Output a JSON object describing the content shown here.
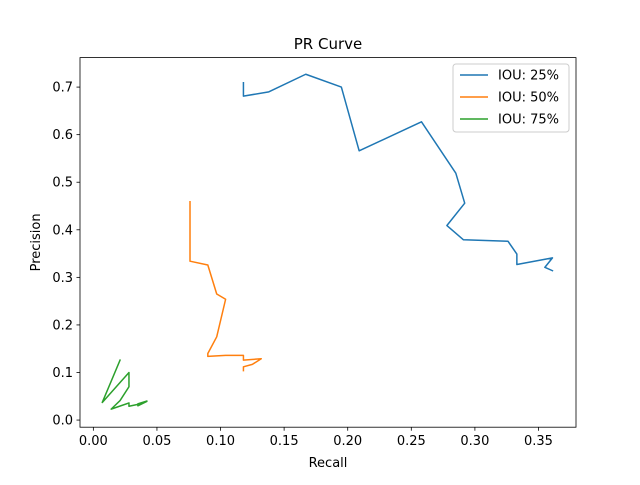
{
  "chart_data": {
    "type": "line",
    "title": "PR Curve",
    "xlabel": "Recall",
    "ylabel": "Precision",
    "xlim": [
      -0.0105,
      0.3795
    ],
    "ylim": [
      -0.015,
      0.762
    ],
    "xticks": [
      0.0,
      0.05,
      0.1,
      0.15,
      0.2,
      0.25,
      0.3,
      0.35
    ],
    "xtick_labels": [
      "0.00",
      "0.05",
      "0.10",
      "0.15",
      "0.20",
      "0.25",
      "0.30",
      "0.35"
    ],
    "yticks": [
      0.0,
      0.1,
      0.2,
      0.3,
      0.4,
      0.5,
      0.6,
      0.7
    ],
    "ytick_labels": [
      "0.0",
      "0.1",
      "0.2",
      "0.3",
      "0.4",
      "0.5",
      "0.6",
      "0.7"
    ],
    "grid": false,
    "legend_position": "top-right",
    "series": [
      {
        "name": "IOU: 25%",
        "color": "#1f77b4",
        "points": [
          [
            0.118,
            0.709
          ],
          [
            0.118,
            0.681
          ],
          [
            0.138,
            0.69
          ],
          [
            0.167,
            0.727
          ],
          [
            0.195,
            0.7
          ],
          [
            0.209,
            0.566
          ],
          [
            0.258,
            0.627
          ],
          [
            0.285,
            0.519
          ],
          [
            0.292,
            0.456
          ],
          [
            0.278,
            0.409
          ],
          [
            0.291,
            0.379
          ],
          [
            0.326,
            0.376
          ],
          [
            0.333,
            0.349
          ],
          [
            0.333,
            0.327
          ],
          [
            0.361,
            0.341
          ],
          [
            0.355,
            0.321
          ],
          [
            0.361,
            0.314
          ]
        ]
      },
      {
        "name": "IOU: 50%",
        "color": "#ff7f0e",
        "points": [
          [
            0.076,
            0.459
          ],
          [
            0.076,
            0.334
          ],
          [
            0.09,
            0.326
          ],
          [
            0.097,
            0.265
          ],
          [
            0.104,
            0.254
          ],
          [
            0.097,
            0.175
          ],
          [
            0.09,
            0.14
          ],
          [
            0.09,
            0.134
          ],
          [
            0.104,
            0.136
          ],
          [
            0.118,
            0.136
          ],
          [
            0.118,
            0.126
          ],
          [
            0.132,
            0.129
          ],
          [
            0.125,
            0.117
          ],
          [
            0.118,
            0.112
          ],
          [
            0.118,
            0.104
          ]
        ]
      },
      {
        "name": "IOU: 75%",
        "color": "#2ca02c",
        "points": [
          [
            0.021,
            0.126
          ],
          [
            0.007,
            0.037
          ],
          [
            0.028,
            0.1
          ],
          [
            0.028,
            0.07
          ],
          [
            0.021,
            0.041
          ],
          [
            0.014,
            0.023
          ],
          [
            0.028,
            0.036
          ],
          [
            0.028,
            0.029
          ],
          [
            0.035,
            0.033
          ],
          [
            0.035,
            0.03
          ],
          [
            0.042,
            0.039
          ],
          [
            0.035,
            0.034
          ],
          [
            0.042,
            0.04
          ]
        ]
      }
    ]
  }
}
